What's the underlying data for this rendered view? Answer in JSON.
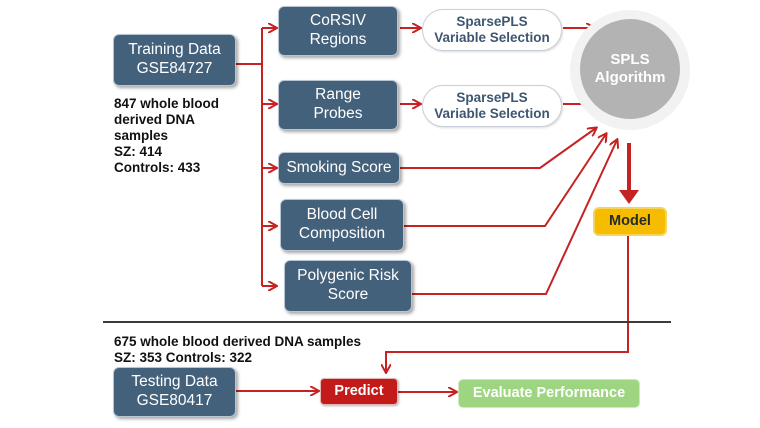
{
  "training": {
    "box": "Training Data\nGSE84727",
    "note": "847 whole blood\nderived DNA\nsamples\nSZ: 414\nControls: 433"
  },
  "features": [
    "CoRSIV\nRegions",
    "Range\nProbes",
    "Smoking Score",
    "Blood Cell\nComposition",
    "Polygenic Risk\nScore"
  ],
  "selection": [
    "SparsePLS\nVariable Selection",
    "SparsePLS\nVariable Selection"
  ],
  "algorithm": "SPLS\nAlgorithm",
  "model": "Model",
  "testing": {
    "note": "675 whole blood derived DNA samples\nSZ: 353 Controls: 322",
    "box": "Testing Data\nGSE80417"
  },
  "predict": "Predict",
  "evaluate": "Evaluate Performance",
  "colors": {
    "arrow": "#c62222",
    "feature_box": "#44617b",
    "model": "#f5bc00",
    "predict": "#c31a1a",
    "evaluate": "#9ed580",
    "algorithm": "#b3b3b3"
  }
}
